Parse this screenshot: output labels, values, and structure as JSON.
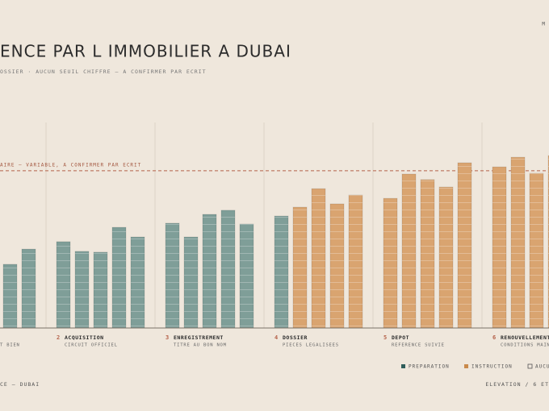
{
  "chart_data": {
    "type": "bar",
    "corner": "M",
    "title": "ENCE PAR L IMMOBILIER A DUBAI",
    "subtitle": "OSSIER · AUCUN SEUIL CHIFFRE — A CONFIRMER PAR ECRIT",
    "threshold": {
      "value": 76.5,
      "label": "AIRE — VARIABLE, A CONFIRMER PAR ECRIT"
    },
    "ylim": [
      0,
      100
    ],
    "series": [
      {
        "name": "PREPARATION",
        "color": "#7f9e98"
      },
      {
        "name": "INSTRUCTION",
        "color": "#d9a470"
      },
      {
        "name": "AUCU",
        "color": "none"
      }
    ],
    "groups": [
      {
        "subtitle": "T BIEN",
        "values": [
          31,
          38.4
        ],
        "phase": [
          0,
          0
        ]
      },
      {
        "number": "2",
        "name": "ACQUISITION",
        "subtitle": "CIRCUIT OFFICIEL",
        "values": [
          42,
          37.3,
          36.9,
          49,
          44.3
        ],
        "phase": [
          0,
          0,
          0,
          0,
          0
        ]
      },
      {
        "number": "3",
        "name": "ENREGISTREMENT",
        "subtitle": "TITRE AU BON NOM",
        "values": [
          51,
          44.3,
          55.3,
          57.3,
          50.6
        ],
        "phase": [
          0,
          0,
          0,
          0,
          0
        ]
      },
      {
        "number": "4",
        "name": "DOSSIER",
        "subtitle": "PIECES LEGALISEES",
        "values": [
          54.5,
          58.8,
          67.8,
          60.4,
          64.7
        ],
        "phase": [
          0,
          1,
          1,
          1,
          1
        ]
      },
      {
        "number": "5",
        "name": "DEPOT",
        "subtitle": "REFERENCE SUIVIE",
        "values": [
          63.1,
          74.9,
          72.2,
          68.6,
          80.4
        ],
        "phase": [
          1,
          1,
          1,
          1,
          1
        ]
      },
      {
        "number": "6",
        "name": "RENOUVELLEMENT",
        "subtitle": "CONDITIONS MAINT",
        "values": [
          78.4,
          83.1,
          75.3,
          83.9
        ],
        "phase": [
          1,
          1,
          1,
          1
        ]
      }
    ],
    "footer_left": "CE — DUBAI",
    "footer_right": "ELEVATION / 6 ET"
  }
}
